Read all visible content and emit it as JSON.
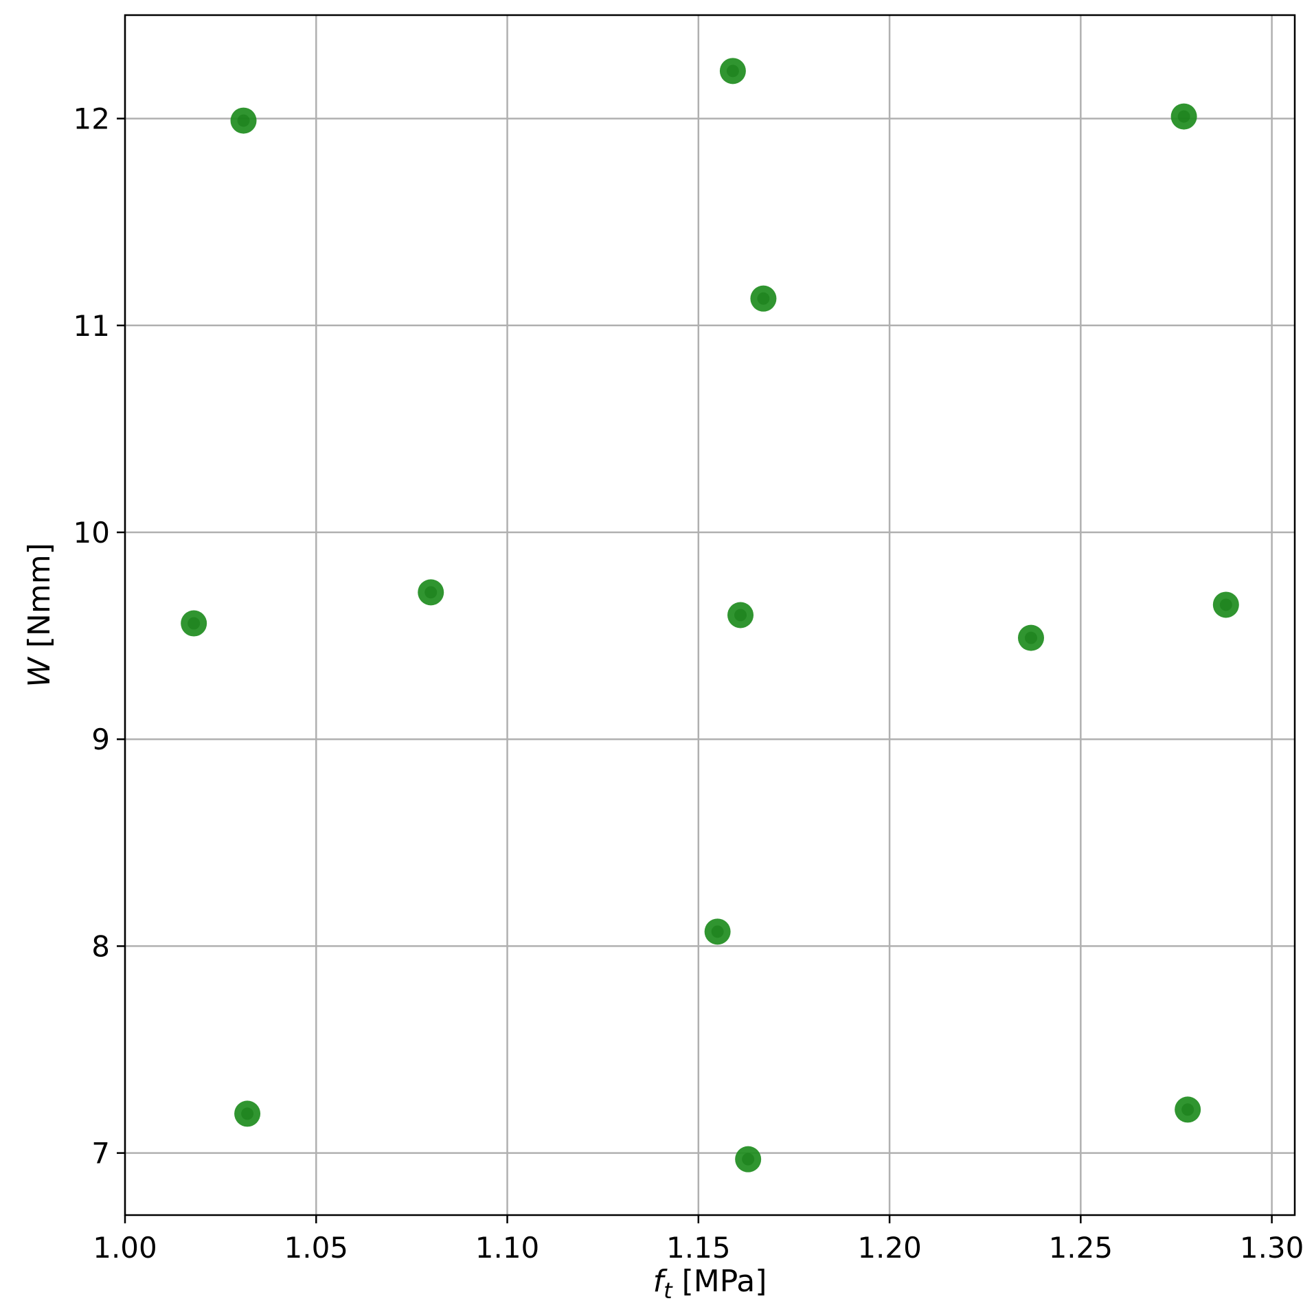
{
  "chart_data": {
    "type": "scatter",
    "title": "",
    "xlabel": {
      "symbol": "f",
      "subscript": "t",
      "unit": " [MPa]"
    },
    "ylabel": {
      "symbol": "W",
      "unit": " [Nmm]"
    },
    "xlim": [
      1.0,
      1.306
    ],
    "ylim": [
      6.7,
      12.5
    ],
    "xticks": [
      1.0,
      1.05,
      1.1,
      1.15,
      1.2,
      1.25,
      1.3
    ],
    "xtick_labels": [
      "1.00",
      "1.05",
      "1.10",
      "1.15",
      "1.20",
      "1.25",
      "1.30"
    ],
    "yticks": [
      7,
      8,
      9,
      10,
      11,
      12
    ],
    "ytick_labels": [
      "7",
      "8",
      "9",
      "10",
      "11",
      "12"
    ],
    "grid": true,
    "marker_color": "#1e8c1e",
    "points": [
      {
        "x": 1.018,
        "y": 9.56
      },
      {
        "x": 1.031,
        "y": 11.99
      },
      {
        "x": 1.032,
        "y": 7.19
      },
      {
        "x": 1.08,
        "y": 9.71
      },
      {
        "x": 1.155,
        "y": 8.07
      },
      {
        "x": 1.159,
        "y": 12.23
      },
      {
        "x": 1.161,
        "y": 9.6
      },
      {
        "x": 1.163,
        "y": 6.97
      },
      {
        "x": 1.167,
        "y": 11.13
      },
      {
        "x": 1.237,
        "y": 9.49
      },
      {
        "x": 1.277,
        "y": 12.01
      },
      {
        "x": 1.278,
        "y": 7.21
      },
      {
        "x": 1.288,
        "y": 9.65
      }
    ]
  }
}
